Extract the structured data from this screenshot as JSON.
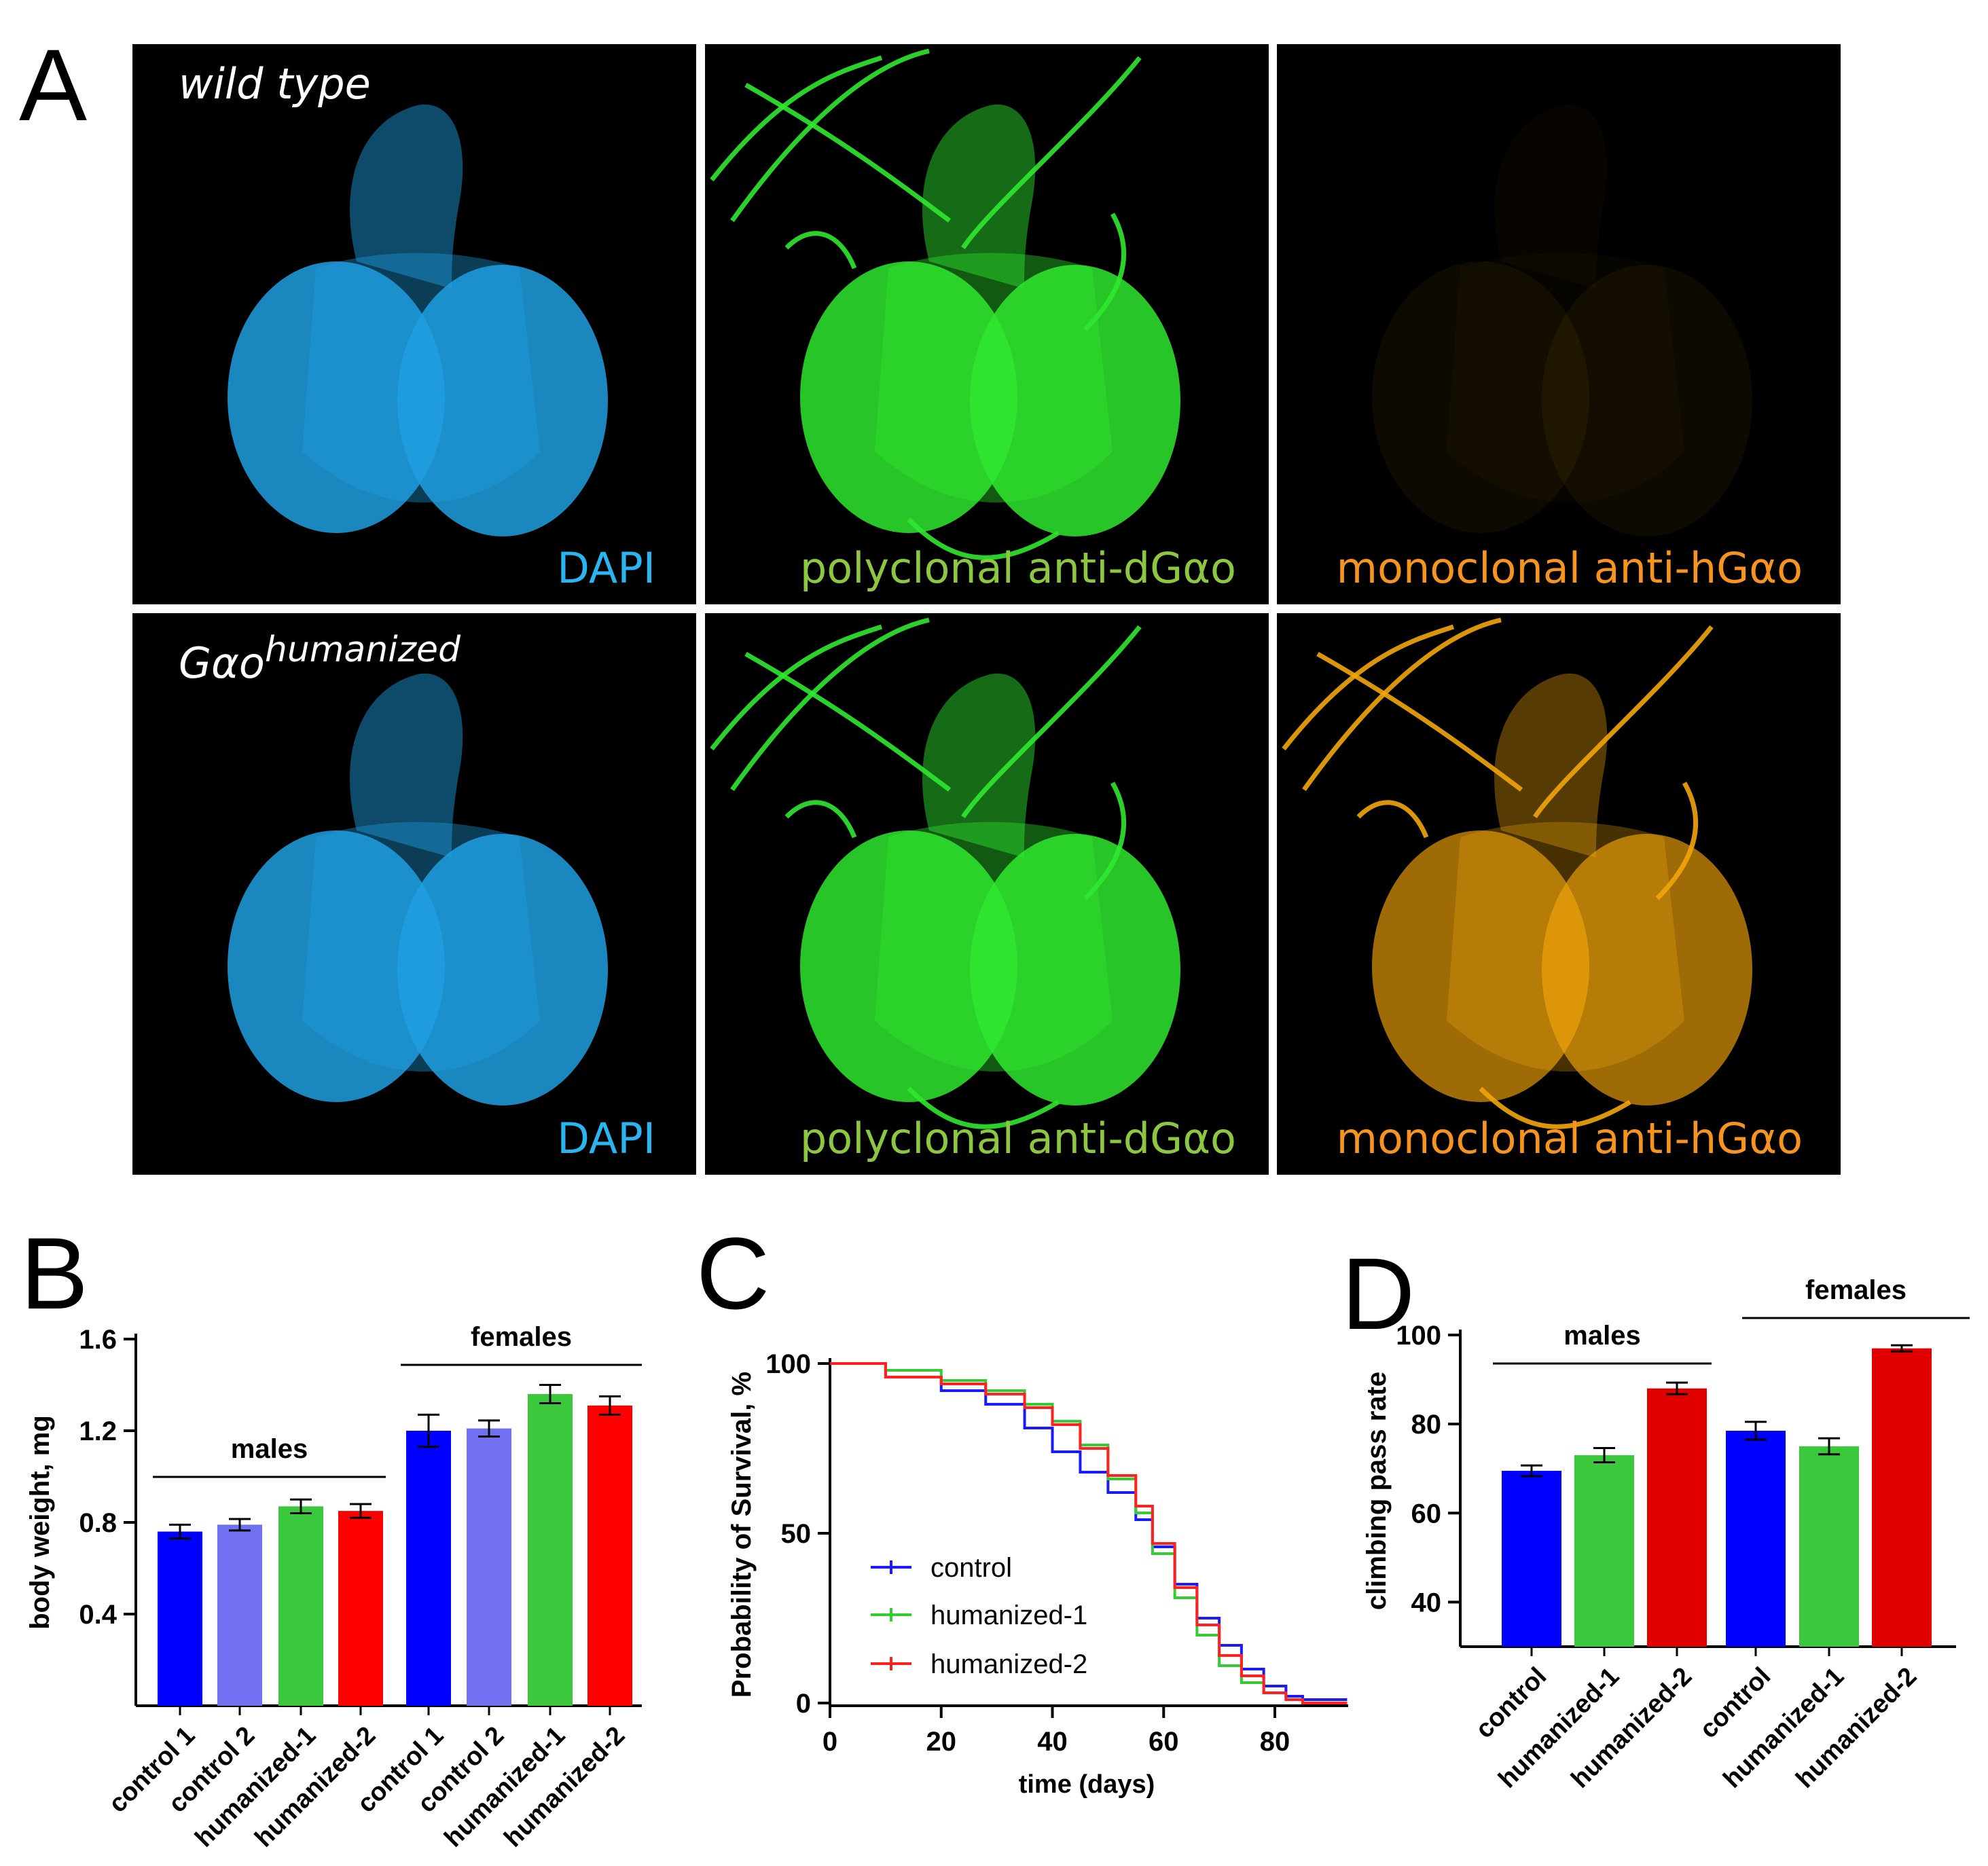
{
  "panel_letters": {
    "a": "A",
    "b": "B",
    "c": "C",
    "d": "D"
  },
  "panel_a": {
    "rows": [
      {
        "label": "wild type",
        "sup": ""
      },
      {
        "label": "Gαo",
        "sup": "humanized"
      }
    ],
    "channels": [
      {
        "label": "DAPI",
        "color": "#29b6f0"
      },
      {
        "label": "polyclonal anti-dGαo",
        "color": "#8dc63f"
      },
      {
        "label": "monoclonal anti-hGαo",
        "color": "#f7941d"
      }
    ],
    "stain_colors": {
      "dapi": "#1e9fe0",
      "poly": "#2fe82f",
      "mono": "#f2a50a"
    }
  },
  "chart_data": [
    {
      "type": "bar",
      "ylabel": "body weight, mg",
      "ylim": [
        0,
        1.6
      ],
      "yticks": [
        "0.4",
        "0.8",
        "1.2",
        "1.6"
      ],
      "categories": [
        "control 1",
        "control 2",
        "humanized-1",
        "humanized-2",
        "control 1",
        "control 2",
        "humanized-1",
        "humanized-2"
      ],
      "values": [
        0.76,
        0.79,
        0.87,
        0.85,
        1.2,
        1.21,
        1.36,
        1.31
      ],
      "errors": [
        0.03,
        0.025,
        0.03,
        0.03,
        0.07,
        0.035,
        0.04,
        0.04
      ],
      "colors": [
        "#0000ff",
        "#7070f0",
        "#3cc83c",
        "#ff0000",
        "#0000ff",
        "#7070f0",
        "#3cc83c",
        "#ff0000"
      ],
      "group_labels": [
        "males",
        "females"
      ]
    },
    {
      "type": "line",
      "xlabel": "time (days)",
      "ylabel": "Probability of Survival, %",
      "xlim": [
        0,
        93
      ],
      "ylim": [
        0,
        100
      ],
      "xticks": [
        "0",
        "20",
        "40",
        "60",
        "80"
      ],
      "yticks": [
        "0",
        "50",
        "100"
      ],
      "series": [
        {
          "name": "control",
          "color": "#1a1aff",
          "x": [
            0,
            10,
            20,
            28,
            35,
            40,
            45,
            50,
            55,
            58,
            62,
            66,
            70,
            74,
            78,
            82,
            85,
            93
          ],
          "y": [
            100,
            96,
            92,
            88,
            81,
            74,
            68,
            62,
            54,
            46,
            35,
            25,
            17,
            10,
            5,
            2,
            1,
            1
          ]
        },
        {
          "name": "humanized-1",
          "color": "#33cc33",
          "x": [
            0,
            10,
            20,
            28,
            35,
            40,
            45,
            50,
            55,
            58,
            62,
            66,
            70,
            74,
            78,
            82,
            85,
            93
          ],
          "y": [
            100,
            98,
            95,
            92,
            88,
            83,
            76,
            66,
            56,
            44,
            31,
            20,
            11,
            6,
            3,
            1,
            0,
            0
          ]
        },
        {
          "name": "humanized-2",
          "color": "#ff2020",
          "x": [
            0,
            10,
            20,
            28,
            35,
            40,
            45,
            50,
            55,
            58,
            62,
            66,
            70,
            74,
            78,
            82,
            85,
            93
          ],
          "y": [
            100,
            96,
            94,
            91,
            87,
            82,
            75,
            67,
            58,
            47,
            34,
            23,
            14,
            8,
            3,
            1,
            0,
            0
          ]
        }
      ]
    },
    {
      "type": "bar",
      "ylabel": "climbing pass rate",
      "ylim": [
        30,
        100
      ],
      "yticks": [
        "40",
        "60",
        "80",
        "100"
      ],
      "categories": [
        "control",
        "humanized-1",
        "humanized-2",
        "control",
        "humanized-1",
        "humanized-2"
      ],
      "values": [
        69.5,
        73,
        88,
        78.5,
        75,
        97
      ],
      "errors": [
        1.2,
        1.6,
        1.3,
        2.0,
        1.8,
        0.7
      ],
      "colors": [
        "#0000ff",
        "#3cc83c",
        "#e00000",
        "#0000ff",
        "#3cc83c",
        "#e00000"
      ],
      "group_labels": [
        "males",
        "females"
      ]
    }
  ]
}
